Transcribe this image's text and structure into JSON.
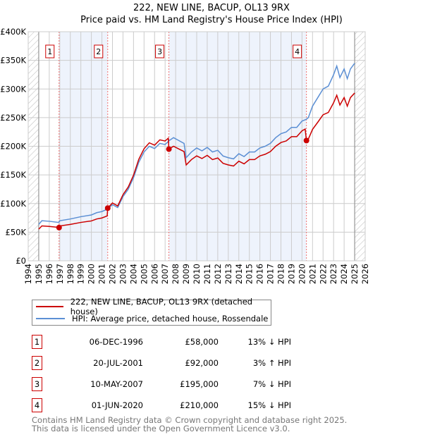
{
  "chart_data": {
    "type": "line",
    "title": "222, NEW LINE, BACUP, OL13 9RX",
    "subtitle": "Price paid vs. HM Land Registry's House Price Index (HPI)",
    "xlim": [
      1994,
      2026
    ],
    "ylim": [
      0,
      400000
    ],
    "y_ticks": [
      "£0",
      "£50K",
      "£100K",
      "£150K",
      "£200K",
      "£250K",
      "£300K",
      "£350K",
      "£400K"
    ],
    "x_ticks": [
      "1994",
      "1995",
      "1996",
      "1997",
      "1998",
      "1999",
      "2000",
      "2001",
      "2002",
      "2003",
      "2004",
      "2005",
      "2006",
      "2007",
      "2008",
      "2009",
      "2010",
      "2011",
      "2012",
      "2013",
      "2014",
      "2015",
      "2016",
      "2017",
      "2018",
      "2019",
      "2020",
      "2021",
      "2022",
      "2023",
      "2024",
      "2025",
      "2026"
    ],
    "grid": true,
    "hatched_ranges": [
      [
        1994,
        1995
      ],
      [
        2025,
        2026
      ]
    ],
    "shaded_ranges": [
      [
        1996.93,
        2001.55
      ],
      [
        2007.36,
        2020.42
      ]
    ],
    "series": [
      {
        "name": "222, NEW LINE, BACUP, OL13 9RX (detached house)",
        "color": "#cc0000",
        "x": [
          1995,
          1995.3,
          1996,
          1996.9,
          1997,
          1998,
          1999,
          2000,
          2000.5,
          2001,
          2001.5,
          2001.55,
          2002,
          2002.5,
          2003,
          2003.5,
          2004,
          2004.5,
          2005,
          2005.5,
          2006,
          2006.5,
          2007,
          2007.3,
          2007.36,
          2007.8,
          2008.3,
          2008.8,
          2009,
          2009.5,
          2010,
          2010.5,
          2011,
          2011.5,
          2012,
          2012.5,
          2013,
          2013.5,
          2014,
          2014.5,
          2015,
          2015.5,
          2016,
          2016.5,
          2017,
          2017.5,
          2018,
          2018.5,
          2019,
          2019.5,
          2020,
          2020.3,
          2020.42,
          2020.6,
          2021,
          2021.5,
          2022,
          2022.5,
          2023,
          2023.3,
          2023.6,
          2024,
          2024.3,
          2024.6,
          2025
        ],
        "y": [
          55200,
          60900,
          60000,
          58300,
          60900,
          63500,
          67000,
          69600,
          73000,
          74800,
          78300,
          92000,
          101000,
          95800,
          115400,
          128800,
          149400,
          177200,
          195700,
          206000,
          201900,
          211200,
          209100,
          214000,
          195000,
          200000,
          195300,
          190700,
          167400,
          176700,
          183200,
          178600,
          184100,
          176700,
          179500,
          170200,
          167400,
          165500,
          173900,
          169300,
          176700,
          176700,
          183200,
          186000,
          190700,
          200000,
          206500,
          209300,
          216700,
          216700,
          226900,
          230000,
          210000,
          212500,
          229500,
          242000,
          255000,
          259000,
          276000,
          289000,
          272000,
          285000,
          270000,
          285000,
          293000
        ]
      },
      {
        "name": "HPI: Average price, detached house, Rossendale",
        "color": "#5b8fd4",
        "x": [
          1995,
          1995.3,
          1996,
          1996.9,
          1997,
          1998,
          1999,
          2000,
          2000.5,
          2001,
          2001.5,
          2002,
          2002.5,
          2003,
          2003.5,
          2004,
          2004.5,
          2005,
          2005.5,
          2006,
          2006.5,
          2007,
          2007.4,
          2007.8,
          2008.3,
          2008.8,
          2009,
          2009.5,
          2010,
          2010.5,
          2011,
          2011.5,
          2012,
          2012.5,
          2013,
          2013.5,
          2014,
          2014.5,
          2015,
          2015.5,
          2016,
          2016.5,
          2017,
          2017.5,
          2018,
          2018.5,
          2019,
          2019.5,
          2020,
          2020.4,
          2020.6,
          2021,
          2021.5,
          2022,
          2022.5,
          2023,
          2023.3,
          2023.6,
          2024,
          2024.3,
          2024.6,
          2025
        ],
        "y": [
          63500,
          70000,
          69000,
          67000,
          70000,
          73000,
          77000,
          80000,
          84000,
          86000,
          90000,
          98000,
          93000,
          112000,
          125000,
          145000,
          172000,
          190000,
          200000,
          196000,
          205000,
          203000,
          210000,
          215000,
          210000,
          205000,
          180000,
          190000,
          197000,
          192000,
          198000,
          190000,
          193000,
          183000,
          180000,
          178000,
          187000,
          182000,
          190000,
          190000,
          197000,
          200000,
          205000,
          215000,
          222000,
          225000,
          233000,
          233000,
          244000,
          247000,
          250000,
          270000,
          285000,
          300000,
          305000,
          325000,
          340000,
          320000,
          335000,
          318000,
          335000,
          345000
        ]
      }
    ],
    "sales": [
      {
        "label": "1",
        "x": 1996.93,
        "y": 58000
      },
      {
        "label": "2",
        "x": 2001.55,
        "y": 92000
      },
      {
        "label": "3",
        "x": 2007.36,
        "y": 195000
      },
      {
        "label": "4",
        "x": 2020.42,
        "y": 210000
      }
    ]
  },
  "legend": [
    "222, NEW LINE, BACUP, OL13 9RX (detached house)",
    "HPI: Average price, detached house, Rossendale"
  ],
  "transactions": [
    {
      "num": "1",
      "date": "06-DEC-1996",
      "price": "£58,000",
      "hpi": "13% ↓ HPI"
    },
    {
      "num": "2",
      "date": "20-JUL-2001",
      "price": "£92,000",
      "hpi": "3% ↑ HPI"
    },
    {
      "num": "3",
      "date": "10-MAY-2007",
      "price": "£195,000",
      "hpi": "7% ↓ HPI"
    },
    {
      "num": "4",
      "date": "01-JUN-2020",
      "price": "£210,000",
      "hpi": "15% ↓ HPI"
    }
  ],
  "footer": [
    "Contains HM Land Registry data © Crown copyright and database right 2025.",
    "This data is licensed under the Open Government Licence v3.0."
  ]
}
